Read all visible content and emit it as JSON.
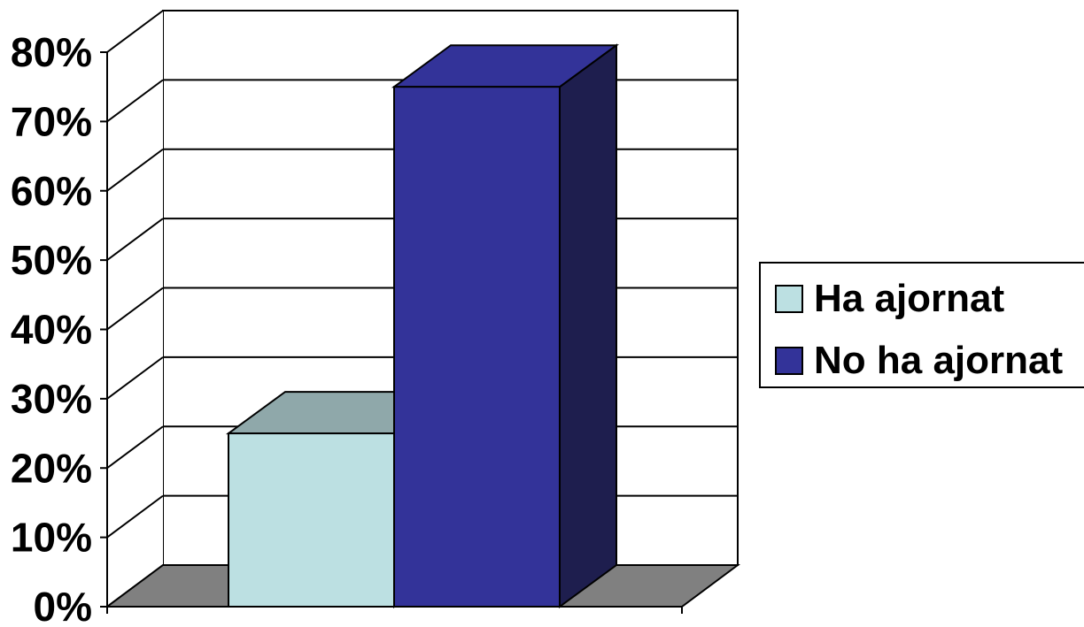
{
  "chart_data": {
    "type": "bar",
    "title": "",
    "xlabel": "",
    "ylabel": "",
    "three_d": true,
    "categories": [
      ""
    ],
    "series": [
      {
        "name": "Ha ajornat",
        "values": [
          0.25
        ],
        "color": "#BCE0E2",
        "top_color": "#8FA8AA"
      },
      {
        "name": "No ha ajornat",
        "values": [
          0.75
        ],
        "color": "#333399",
        "side_color": "#1E1E4E"
      }
    ],
    "ylim": [
      0,
      0.8
    ],
    "yticks": [
      0,
      0.1,
      0.2,
      0.3,
      0.4,
      0.5,
      0.6,
      0.7,
      0.8
    ],
    "ytick_labels": [
      "0%",
      "10%",
      "20%",
      "30%",
      "40%",
      "50%",
      "60%",
      "70%",
      "80%"
    ],
    "grid": true,
    "floor_color": "#808080",
    "legend": {
      "position": "right",
      "entries": [
        "Ha ajornat",
        "No ha ajornat"
      ]
    }
  }
}
